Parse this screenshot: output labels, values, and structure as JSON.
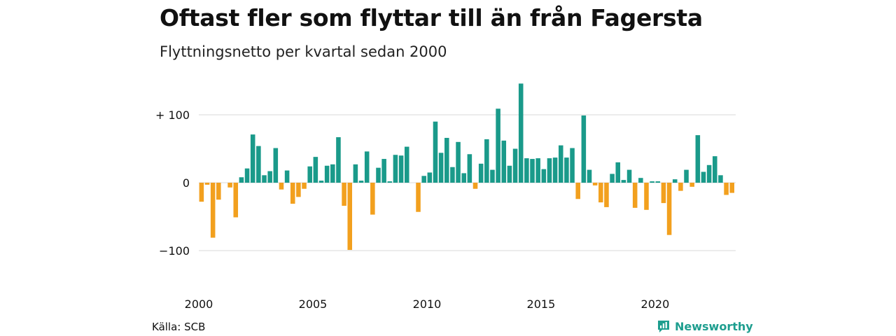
{
  "header": {
    "title": "Oftast fler som flyttar till än från Fagersta",
    "subtitle": "Flyttningsnetto per kvartal sedan 2000"
  },
  "footer": {
    "source": "Källa: SCB",
    "brand": "Newsworthy"
  },
  "colors": {
    "positive": "#1a9a8a",
    "negative": "#f2a01e",
    "grid": "#d9d9d9",
    "brand": "#1e9e8f"
  },
  "chart_data": {
    "type": "bar",
    "title": "Oftast fler som flyttar till än från Fagersta",
    "subtitle": "Flyttningsnetto per kvartal sedan 2000",
    "xlabel": "",
    "ylabel": "",
    "x_start": "2000 Q1",
    "period": "quarter",
    "x_ticks": [
      {
        "label": "2000",
        "year": 2000
      },
      {
        "label": "2005",
        "year": 2005
      },
      {
        "label": "2010",
        "year": 2010
      },
      {
        "label": "2015",
        "year": 2015
      },
      {
        "label": "2020",
        "year": 2020
      }
    ],
    "y_ticks": [
      {
        "label": "+ 100",
        "value": 100
      },
      {
        "label": "0",
        "value": 0
      },
      {
        "label": "−100",
        "value": -100
      }
    ],
    "ylim": [
      -130,
      150
    ],
    "grid": true,
    "values": [
      -28,
      -3,
      -81,
      -25,
      0,
      -7,
      -51,
      8,
      21,
      71,
      54,
      11,
      17,
      51,
      -10,
      18,
      -31,
      -21,
      -9,
      24,
      38,
      3,
      25,
      27,
      67,
      -34,
      -99,
      27,
      3,
      46,
      -47,
      22,
      35,
      2,
      41,
      40,
      53,
      0,
      -43,
      10,
      15,
      90,
      44,
      66,
      23,
      60,
      14,
      42,
      -9,
      28,
      64,
      19,
      109,
      62,
      25,
      50,
      146,
      36,
      35,
      36,
      20,
      36,
      37,
      55,
      37,
      51,
      -24,
      99,
      19,
      -4,
      -29,
      -36,
      13,
      30,
      4,
      19,
      -37,
      7,
      -40,
      2,
      2,
      -30,
      -77,
      5,
      -12,
      19,
      -6,
      70,
      16,
      26,
      39,
      11,
      -18,
      -15
    ]
  }
}
